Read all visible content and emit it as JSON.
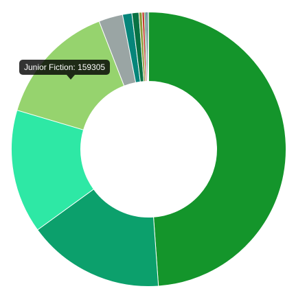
{
  "chart_data": {
    "type": "pie",
    "variant": "doughnut",
    "labels": [
      "",
      "",
      "",
      "Junior Fiction",
      "",
      "",
      "",
      "",
      "",
      "",
      "",
      ""
    ],
    "values": [
      536000,
      177000,
      160000,
      159305,
      31000,
      12000,
      9000,
      4000,
      3000,
      2000,
      2000,
      1500
    ],
    "colors": [
      "#14952b",
      "#0ca06c",
      "#2ee8a5",
      "#96d36e",
      "#9aa5a4",
      "#06857a",
      "#087244",
      "#8a9a38",
      "#c2362a",
      "#1f7d3e",
      "#123a70",
      "#1b6f4d"
    ],
    "legend": "none",
    "tooltip": {
      "label": "Junior Fiction",
      "value": "159305",
      "text": "Junior Fiction: 159305"
    }
  }
}
